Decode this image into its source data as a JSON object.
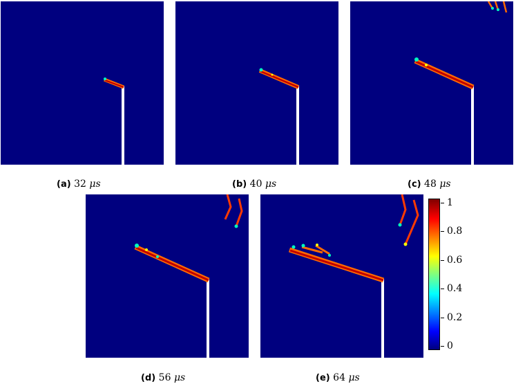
{
  "panels": [
    {
      "id": "a",
      "tag": "(a)",
      "time": "32",
      "unit": "μs"
    },
    {
      "id": "b",
      "tag": "(b)",
      "time": "40",
      "unit": "μs"
    },
    {
      "id": "c",
      "tag": "(c)",
      "time": "48",
      "unit": "μs"
    },
    {
      "id": "d",
      "tag": "(d)",
      "time": "56",
      "unit": "μs"
    },
    {
      "id": "e",
      "tag": "(e)",
      "time": "64",
      "unit": "μs"
    }
  ],
  "colorbar": {
    "ticks": [
      "0",
      "0.2",
      "0.4",
      "0.6",
      "0.8",
      "1"
    ],
    "min": 0,
    "max": 1,
    "colormap": "jet"
  },
  "colors": {
    "background_field": "#00007f",
    "crack": "#d40000",
    "notch": "#ffffff"
  }
}
